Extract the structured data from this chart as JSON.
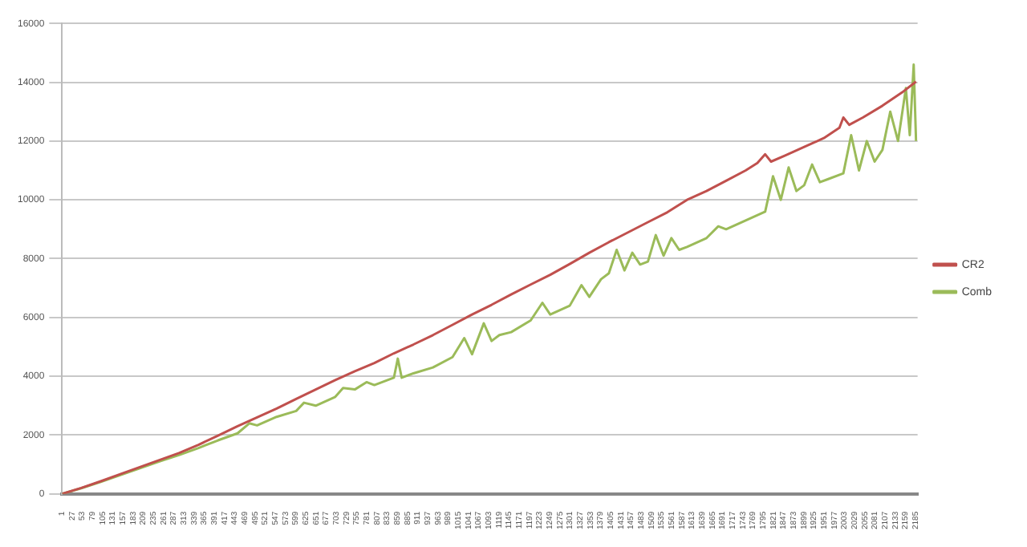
{
  "chart_data": {
    "type": "line",
    "xlim": [
      1,
      2190
    ],
    "xticks": [
      1,
      27,
      53,
      79,
      105,
      131,
      157,
      183,
      209,
      235,
      261,
      287,
      313,
      339,
      365,
      391,
      417,
      443,
      469,
      495,
      521,
      547,
      573,
      599,
      625,
      651,
      677,
      703,
      729,
      755,
      781,
      807,
      833,
      859,
      885,
      911,
      937,
      963,
      989,
      1015,
      1041,
      1067,
      1093,
      1119,
      1145,
      1171,
      1197,
      1223,
      1249,
      1275,
      1301,
      1327,
      1353,
      1379,
      1405,
      1431,
      1457,
      1483,
      1509,
      1535,
      1561,
      1587,
      1613,
      1639,
      1665,
      1691,
      1717,
      1743,
      1769,
      1795,
      1821,
      1847,
      1873,
      1899,
      1925,
      1951,
      1977,
      2003,
      2029,
      2055,
      2081,
      2107,
      2133,
      2159,
      2185
    ],
    "ylim": [
      0,
      16000
    ],
    "yticks": [
      0,
      2000,
      4000,
      6000,
      8000,
      10000,
      12000,
      14000,
      16000
    ],
    "grid": "y",
    "legend": "right",
    "marker": "none",
    "line_style": "solid",
    "series": [
      {
        "name": "CR2",
        "color": "#c0504d",
        "x": [
          1,
          50,
          100,
          150,
          200,
          250,
          300,
          350,
          400,
          450,
          500,
          550,
          600,
          650,
          700,
          750,
          800,
          850,
          900,
          950,
          1000,
          1050,
          1100,
          1150,
          1200,
          1250,
          1300,
          1350,
          1400,
          1450,
          1500,
          1550,
          1600,
          1650,
          1700,
          1750,
          1780,
          1800,
          1815,
          1850,
          1900,
          1950,
          1990,
          2000,
          2015,
          2050,
          2100,
          2150,
          2186
        ],
        "values": [
          0,
          200,
          430,
          670,
          910,
          1150,
          1390,
          1670,
          1980,
          2300,
          2600,
          2900,
          3230,
          3550,
          3870,
          4170,
          4450,
          4780,
          5080,
          5400,
          5750,
          6100,
          6430,
          6780,
          7120,
          7450,
          7820,
          8200,
          8560,
          8900,
          9240,
          9580,
          10000,
          10300,
          10650,
          11000,
          11250,
          11550,
          11300,
          11500,
          11800,
          12100,
          12450,
          12800,
          12550,
          12800,
          13200,
          13650,
          14020
        ]
      },
      {
        "name": "Comb",
        "color": "#9bbb59",
        "x": [
          1,
          50,
          100,
          150,
          200,
          250,
          300,
          350,
          400,
          450,
          480,
          500,
          550,
          600,
          620,
          650,
          700,
          720,
          750,
          780,
          800,
          850,
          860,
          870,
          900,
          950,
          1000,
          1030,
          1050,
          1080,
          1100,
          1120,
          1150,
          1200,
          1230,
          1250,
          1300,
          1330,
          1350,
          1380,
          1400,
          1420,
          1440,
          1460,
          1480,
          1500,
          1520,
          1540,
          1560,
          1580,
          1600,
          1650,
          1680,
          1700,
          1750,
          1800,
          1820,
          1840,
          1860,
          1880,
          1900,
          1920,
          1940,
          1960,
          2000,
          2020,
          2040,
          2060,
          2080,
          2100,
          2120,
          2140,
          2160,
          2170,
          2180,
          2186
        ],
        "values": [
          0,
          190,
          410,
          640,
          870,
          1100,
          1320,
          1560,
          1820,
          2060,
          2400,
          2330,
          2620,
          2820,
          3100,
          3000,
          3300,
          3600,
          3550,
          3800,
          3700,
          3950,
          4600,
          3950,
          4100,
          4300,
          4650,
          5300,
          4750,
          5800,
          5200,
          5400,
          5500,
          5900,
          6500,
          6100,
          6400,
          7100,
          6700,
          7300,
          7500,
          8300,
          7600,
          8200,
          7800,
          7900,
          8800,
          8100,
          8700,
          8300,
          8400,
          8700,
          9100,
          9000,
          9300,
          9600,
          10800,
          10000,
          11100,
          10300,
          10500,
          11200,
          10600,
          10700,
          10900,
          12200,
          11000,
          12000,
          11300,
          11700,
          13000,
          12000,
          13800,
          12200,
          14600,
          12000
        ]
      }
    ]
  }
}
